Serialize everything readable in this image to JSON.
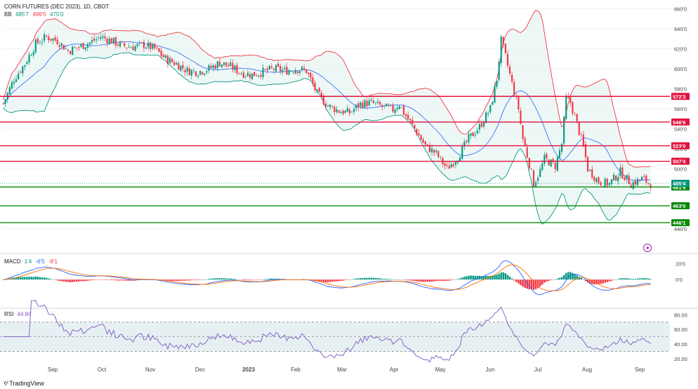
{
  "header": {
    "title": "CORN FUTURES (DEC 2023), 1D, CBOT",
    "bb_label": "BB",
    "bb_values": [
      "485'7",
      "496'5",
      "475'0"
    ],
    "macd_label": "MACD",
    "macd_values": [
      "1'4",
      "-6'5",
      "-8'1"
    ],
    "rsi_label": "RSI",
    "rsi_value": "44.84",
    "brand": "TradingView"
  },
  "colors": {
    "up": "#089981",
    "down": "#f23645",
    "bb_upper": "#f23645",
    "bb_lower": "#089981",
    "bb_mid": "#2962ff",
    "resistance": "#e0123e",
    "support": "#0a8a0a",
    "macd_line": "#2962ff",
    "signal_line": "#ff6d00",
    "hist_pos": "#089981",
    "hist_neg": "#f23645",
    "rsi_line": "#7e57c2",
    "rsi_band": "#e6f0f2"
  },
  "chart_data": [
    {
      "type": "candlestick",
      "title": "CORN FUTURES (DEC 2023), 1D, CBOT",
      "xlabel": "",
      "ylabel": "",
      "x_ticks": [
        "Sep",
        "Oct",
        "Nov",
        "Dec",
        "2023",
        "Feb",
        "Mar",
        "Apr",
        "May",
        "Jun",
        "Jul",
        "Aug",
        "Sep"
      ],
      "y_ticks": [
        "660'0",
        "640'0",
        "620'0",
        "600'0",
        "580'0",
        "560'0",
        "540'0",
        "520'0",
        "500'0",
        "440'0"
      ],
      "ylim": [
        430,
        666
      ],
      "close_path": [
        [
          0,
          565
        ],
        [
          5,
          590
        ],
        [
          10,
          605
        ],
        [
          15,
          625
        ],
        [
          20,
          632
        ],
        [
          25,
          628
        ],
        [
          30,
          618
        ],
        [
          35,
          622
        ],
        [
          40,
          626
        ],
        [
          45,
          632
        ],
        [
          50,
          628
        ],
        [
          55,
          623
        ],
        [
          60,
          622
        ],
        [
          65,
          624
        ],
        [
          70,
          620
        ],
        [
          75,
          610
        ],
        [
          80,
          605
        ],
        [
          85,
          598
        ],
        [
          90,
          597
        ],
        [
          95,
          600
        ],
        [
          100,
          606
        ],
        [
          105,
          602
        ],
        [
          110,
          596
        ],
        [
          115,
          594
        ],
        [
          120,
          597
        ],
        [
          125,
          600
        ],
        [
          130,
          598
        ],
        [
          135,
          600
        ],
        [
          140,
          598
        ],
        [
          145,
          575
        ],
        [
          150,
          563
        ],
        [
          155,
          558
        ],
        [
          160,
          556
        ],
        [
          165,
          565
        ],
        [
          170,
          566
        ],
        [
          175,
          562
        ],
        [
          180,
          559
        ],
        [
          183,
          565
        ],
        [
          185,
          556
        ],
        [
          190,
          540
        ],
        [
          195,
          523
        ],
        [
          200,
          515
        ],
        [
          205,
          500
        ],
        [
          210,
          512
        ],
        [
          215,
          530
        ],
        [
          220,
          542
        ],
        [
          225,
          560
        ],
        [
          228,
          590
        ],
        [
          230,
          628
        ],
        [
          232,
          612
        ],
        [
          235,
          585
        ],
        [
          238,
          560
        ],
        [
          240,
          530
        ],
        [
          243,
          505
        ],
        [
          245,
          485
        ],
        [
          248,
          498
        ],
        [
          250,
          510
        ],
        [
          255,
          503
        ],
        [
          258,
          525
        ],
        [
          260,
          570
        ],
        [
          262,
          566
        ],
        [
          265,
          545
        ],
        [
          268,
          522
        ],
        [
          270,
          500
        ],
        [
          275,
          487
        ],
        [
          280,
          485
        ],
        [
          285,
          497
        ],
        [
          290,
          485
        ],
        [
          295,
          490
        ],
        [
          300,
          484
        ]
      ],
      "horizontal_levels": [
        {
          "label": "572'3",
          "value": 572.4,
          "kind": "resistance"
        },
        {
          "label": "546'6",
          "value": 546.75,
          "kind": "resistance"
        },
        {
          "label": "523'0",
          "value": 523.0,
          "kind": "resistance"
        },
        {
          "label": "507'4",
          "value": 507.5,
          "kind": "resistance"
        },
        {
          "label": "481'6",
          "value": 481.75,
          "kind": "support"
        },
        {
          "label": "463'0",
          "value": 463.0,
          "kind": "support"
        },
        {
          "label": "446'1",
          "value": 446.1,
          "kind": "support"
        }
      ],
      "last_price": {
        "label": "485'4",
        "value": 485.5
      },
      "series": [
        {
          "name": "BB",
          "values": [
            485.875,
            496.625,
            475.0
          ]
        }
      ]
    },
    {
      "type": "macd",
      "title": "MACD",
      "y_ticks": [
        "20'0",
        "0'0"
      ],
      "ylim": [
        -35,
        30
      ],
      "series": [
        {
          "name": "MACD",
          "values": [
            1.5
          ]
        },
        {
          "name": "Signal",
          "values": [
            -6.625
          ]
        },
        {
          "name": "Histogram",
          "values": [
            -8.125
          ]
        }
      ]
    },
    {
      "type": "line",
      "title": "RSI",
      "y_ticks": [
        "80.00",
        "60.00",
        "40.00",
        "20.00"
      ],
      "ylim": [
        15,
        88
      ],
      "band": [
        30,
        70
      ],
      "series": [
        {
          "name": "RSI",
          "values": [
            44.84
          ]
        }
      ]
    }
  ]
}
